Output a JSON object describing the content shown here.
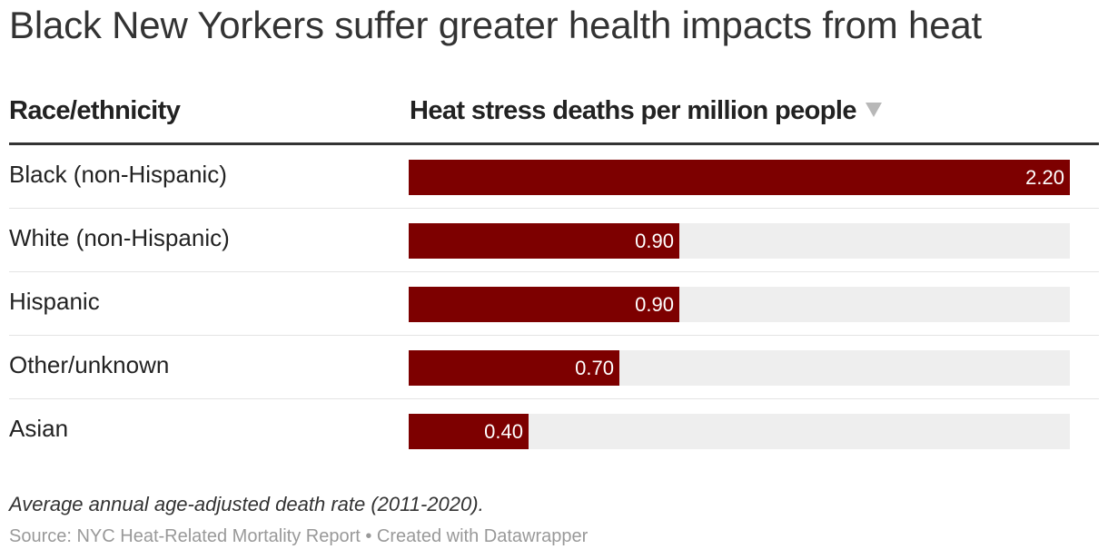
{
  "header": {
    "title": "Black New Yorkers suffer greater health impacts from heat"
  },
  "table": {
    "col_race": "Race/ethnicity",
    "col_rate": "Heat stress deaths per million people",
    "sort_icon": "sort-descending-icon"
  },
  "chart_data": {
    "type": "bar",
    "orientation": "horizontal",
    "title": "Black New Yorkers suffer greater health impacts from heat",
    "xlabel": "Heat stress deaths per million people",
    "ylabel": "Race/ethnicity",
    "xlim": [
      0,
      2.2
    ],
    "categories": [
      "Black (non-Hispanic)",
      "White (non-Hispanic)",
      "Hispanic",
      "Other/unknown",
      "Asian"
    ],
    "values": [
      2.2,
      0.9,
      0.9,
      0.7,
      0.4
    ],
    "value_labels": [
      "2.20",
      "0.90",
      "0.90",
      "0.70",
      "0.40"
    ],
    "bar_color": "#7d0000",
    "track_color": "#eeeeee"
  },
  "footer": {
    "note": "Average annual age-adjusted death rate (2011-2020).",
    "source": "Source: NYC Heat-Related Mortality Report • Created with Datawrapper"
  }
}
